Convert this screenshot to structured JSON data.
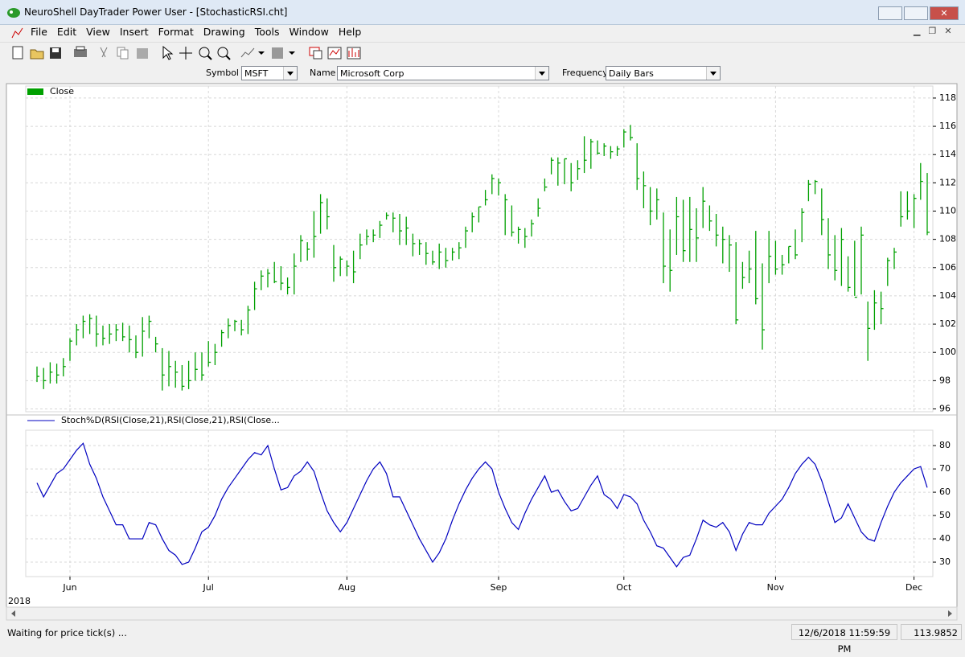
{
  "window": {
    "title": "NeuroShell DayTrader Power User - [StochasticRSI.cht]"
  },
  "menu": [
    "File",
    "Edit",
    "View",
    "Insert",
    "Format",
    "Drawing",
    "Tools",
    "Window",
    "Help"
  ],
  "symbol_bar": {
    "symbol_label": "Symbol",
    "symbol": "MSFT",
    "name_label": "Name",
    "name": "Microsoft Corp",
    "frequency_label": "Frequency",
    "frequency": "Daily Bars"
  },
  "charts": [
    {
      "type": "hlc",
      "grid": true,
      "ylim": [
        95.8,
        118.85
      ],
      "yticks": [
        96,
        98,
        100,
        102,
        104,
        106,
        108,
        110,
        112,
        114,
        116,
        118
      ],
      "series": [
        {
          "name": "Close",
          "color": "#00a000",
          "high": [
            99.0,
            98.9,
            99.3,
            99.2,
            99.6,
            101.0,
            102.0,
            102.6,
            102.7,
            102.6,
            101.9,
            102.0,
            102.0,
            102.1,
            101.9,
            101.2,
            102.5,
            102.6,
            101.1,
            100.3,
            100.1,
            99.4,
            99.1,
            99.4,
            100.0,
            100.0,
            100.8,
            100.6,
            101.6,
            102.4,
            102.3,
            102.3,
            103.3,
            105.0,
            105.8,
            105.9,
            106.4,
            106.1,
            105.3,
            107.0,
            108.3,
            107.8,
            110.0,
            111.2,
            110.9,
            107.6,
            106.8,
            106.5,
            107.2,
            108.4,
            108.7,
            108.7,
            109.3,
            109.9,
            109.9,
            109.8,
            109.6,
            108.4,
            108.0,
            107.8,
            107.2,
            107.7,
            107.4,
            107.4,
            107.8,
            108.9,
            109.9,
            110.3,
            111.5,
            112.6,
            112.3,
            111.2,
            110.4,
            108.9,
            108.8,
            109.4,
            110.9,
            112.3,
            113.8,
            113.8,
            113.7,
            113.4,
            113.6,
            115.3,
            115.1,
            115.0,
            114.8,
            114.6,
            114.6,
            115.8,
            116.1,
            114.8,
            112.8,
            111.7,
            111.6,
            109.9,
            108.7,
            111.0,
            110.8,
            111.0,
            110.2,
            111.7,
            110.4,
            109.8,
            108.9,
            108.3,
            107.8,
            106.4,
            107.2,
            108.6,
            106.3,
            108.6,
            107.9,
            106.9,
            107.5,
            108.7,
            110.2,
            112.2,
            112.2,
            111.6,
            109.5,
            108.3,
            108.8,
            106.8,
            107.9,
            108.9,
            103.6,
            104.4,
            104.3,
            106.7,
            107.4,
            111.4,
            111.4,
            111.2,
            113.4,
            112.7
          ],
          "low": [
            97.9,
            97.4,
            97.8,
            97.8,
            98.3,
            99.4,
            100.5,
            101.0,
            101.3,
            100.4,
            100.5,
            100.6,
            100.8,
            100.8,
            100.0,
            99.6,
            99.7,
            101.0,
            100.0,
            97.3,
            97.6,
            97.5,
            97.3,
            97.4,
            98.0,
            98.0,
            99.0,
            99.1,
            100.4,
            101.0,
            101.5,
            101.2,
            101.3,
            103.0,
            104.4,
            104.6,
            104.9,
            104.4,
            104.1,
            104.1,
            106.4,
            106.5,
            106.7,
            108.4,
            108.7,
            105.0,
            105.4,
            105.4,
            104.9,
            106.6,
            107.6,
            107.8,
            108.1,
            109.4,
            108.5,
            107.6,
            107.6,
            106.8,
            106.9,
            106.2,
            106.2,
            105.9,
            106.0,
            106.5,
            106.6,
            107.4,
            108.5,
            109.2,
            110.4,
            111.2,
            111.1,
            108.3,
            108.2,
            107.7,
            107.4,
            108.2,
            109.6,
            111.4,
            112.6,
            111.8,
            111.9,
            111.4,
            112.2,
            112.7,
            113.0,
            114.0,
            113.9,
            113.7,
            113.9,
            114.5,
            115.0,
            111.5,
            110.2,
            109.0,
            109.4,
            104.9,
            104.3,
            106.9,
            106.4,
            106.4,
            106.4,
            108.8,
            108.6,
            107.5,
            106.3,
            105.7,
            102.0,
            104.5,
            104.9,
            103.4,
            100.2,
            104.9,
            105.5,
            105.5,
            106.3,
            106.6,
            107.8,
            110.7,
            111.2,
            108.3,
            105.9,
            105.1,
            104.7,
            104.3,
            104.0,
            104.1,
            99.4,
            101.6,
            102.0,
            104.7,
            105.9,
            108.9,
            109.4,
            108.8,
            110.8,
            108.3
          ],
          "close": [
            98.3,
            98.0,
            98.6,
            98.4,
            99.0,
            100.8,
            101.6,
            102.2,
            102.4,
            101.3,
            101.0,
            101.3,
            101.6,
            101.1,
            100.9,
            100.0,
            101.5,
            102.2,
            100.6,
            98.4,
            99.0,
            98.6,
            97.6,
            98.0,
            98.8,
            98.4,
            99.3,
            100.0,
            101.4,
            101.9,
            102.2,
            101.6,
            103.0,
            104.5,
            105.4,
            105.6,
            105.0,
            104.9,
            104.6,
            106.1,
            107.9,
            107.3,
            108.2,
            110.6,
            109.6,
            106.0,
            106.6,
            106.1,
            105.7,
            107.6,
            108.2,
            108.3,
            109.0,
            109.7,
            109.5,
            108.6,
            108.8,
            107.7,
            107.7,
            107.0,
            106.4,
            107.1,
            106.5,
            107.1,
            107.4,
            108.6,
            109.6,
            110.3,
            110.8,
            112.3,
            112.0,
            110.8,
            108.5,
            108.7,
            108.2,
            109.1,
            110.2,
            111.7,
            113.6,
            113.4,
            113.7,
            112.0,
            113.0,
            113.6,
            114.9,
            114.1,
            114.6,
            114.2,
            114.4,
            115.6,
            115.2,
            112.3,
            111.8,
            110.0,
            110.8,
            106.1,
            105.8,
            109.6,
            107.2,
            108.7,
            108.1,
            110.7,
            109.3,
            108.3,
            108.0,
            107.6,
            102.3,
            105.3,
            105.9,
            103.8,
            101.6,
            106.8,
            105.9,
            106.2,
            107.5,
            106.9,
            109.9,
            111.9,
            112.1,
            109.4,
            106.9,
            105.8,
            108.0,
            104.6,
            103.9,
            108.3,
            101.7,
            103.5,
            103.1,
            106.5,
            107.1,
            109.6,
            110.0,
            110.9,
            112.1,
            108.5
          ]
        }
      ]
    },
    {
      "type": "line",
      "grid": true,
      "ylim": [
        23.8,
        86.6
      ],
      "yticks": [
        30,
        40,
        50,
        60,
        70,
        80
      ],
      "series": [
        {
          "name": "Stoch%D(RSI(Close,21),RSI(Close,21),RSI(Close...",
          "color": "#0000c0",
          "values": [
            64,
            58,
            63,
            68,
            70,
            74,
            78,
            81,
            72,
            66,
            58,
            52,
            46,
            46,
            40,
            40,
            40,
            47,
            46,
            40,
            35,
            33,
            29,
            30,
            36,
            43,
            45,
            50,
            57,
            62,
            66,
            70,
            74,
            77,
            76,
            80,
            70,
            61,
            62,
            67,
            69,
            73,
            69,
            60,
            52,
            47,
            43,
            47,
            53,
            59,
            65,
            70,
            73,
            68,
            58,
            58,
            52,
            46,
            40,
            35,
            30,
            34,
            40,
            48,
            55,
            61,
            66,
            70,
            73,
            70,
            60,
            53,
            47,
            44,
            51,
            57,
            62,
            67,
            60,
            61,
            56,
            52,
            53,
            58,
            63,
            67,
            59,
            57,
            53,
            59,
            58,
            55,
            48,
            43,
            37,
            36,
            32,
            28,
            32,
            33,
            40,
            48,
            46,
            45,
            47,
            43,
            35,
            42,
            47,
            46,
            46,
            51,
            54,
            57,
            62,
            68,
            72,
            75,
            72,
            65,
            56,
            47,
            49,
            55,
            49,
            43,
            40,
            39,
            47,
            54,
            60,
            64,
            67,
            70,
            71,
            62
          ]
        }
      ]
    }
  ],
  "x_axis": {
    "ticks": [
      {
        "value": 5,
        "label": "Jun"
      },
      {
        "value": 26,
        "label": "Jul"
      },
      {
        "value": 47,
        "label": "Aug"
      },
      {
        "value": 70,
        "label": "Sep"
      },
      {
        "value": 89,
        "label": "Oct"
      },
      {
        "value": 112,
        "label": "Nov"
      },
      {
        "value": 133,
        "label": "Dec"
      }
    ],
    "year": "2018"
  },
  "status": {
    "message": "Waiting for price tick(s) ...",
    "datetime": "12/6/2018 11:59:59 PM",
    "price": 113.9852
  }
}
